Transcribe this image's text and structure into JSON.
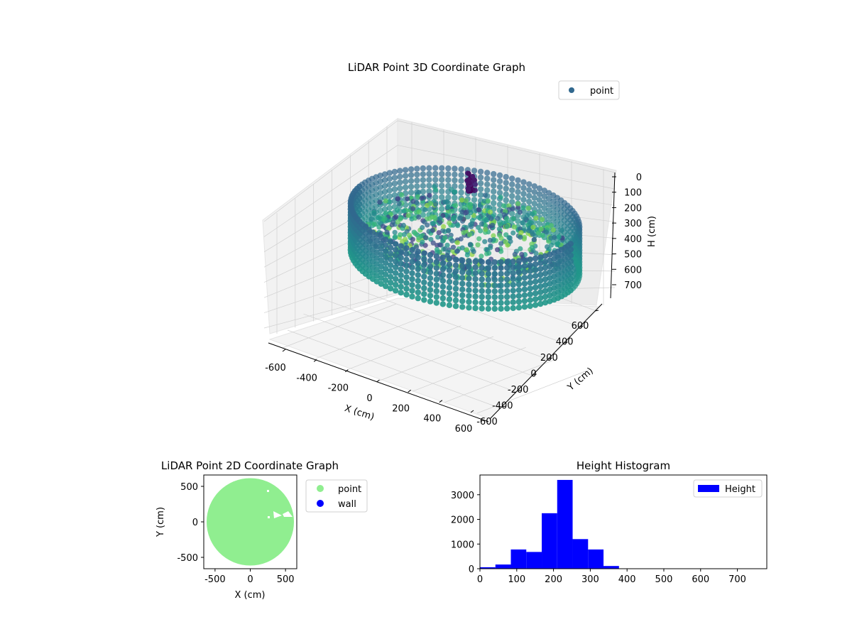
{
  "chart_data": [
    {
      "type": "scatter",
      "title": "LiDAR Point 3D Coordinate Graph",
      "xlabel": "X (cm)",
      "ylabel": "Y (cm)",
      "zlabel": "H (cm)",
      "x_ticks": [
        "-600",
        "-400",
        "-200",
        "0",
        "200",
        "400",
        "600"
      ],
      "y_ticks": [
        "-600",
        "-400",
        "-200",
        "0",
        "200",
        "400",
        "600"
      ],
      "z_ticks": [
        "0",
        "100",
        "200",
        "300",
        "400",
        "500",
        "600",
        "700"
      ],
      "xlim": [
        -650,
        650
      ],
      "ylim": [
        -650,
        650
      ],
      "zlim": [
        0,
        760
      ],
      "z_inverted": true,
      "grid": true,
      "legend": {
        "entries": [
          "point"
        ],
        "placement": "top-right"
      },
      "colors": {
        "legend_marker": "#31688e",
        "panes": "#f2f2f2",
        "grid": "#d0d0d0"
      },
      "ring": {
        "radius": 620,
        "top_h": 50,
        "bottom_h": 460
      },
      "hotspot": {
        "x": -50,
        "y": 200,
        "h_low": 60,
        "h_high": 220
      }
    },
    {
      "type": "scatter",
      "title": "LiDAR Point 2D Coordinate Graph",
      "xlabel": "X (cm)",
      "ylabel": "Y (cm)",
      "x_ticks": [
        "-500",
        "0",
        "500"
      ],
      "y_ticks": [
        "500",
        "0",
        "-500"
      ],
      "xlim": [
        -660,
        660
      ],
      "ylim": [
        -660,
        660
      ],
      "circle_radius": 620,
      "legend": {
        "entries": [
          {
            "label": "point",
            "color": "#90ee90"
          },
          {
            "label": "wall",
            "color": "#0000ff"
          }
        ],
        "placement": "outside-right"
      }
    },
    {
      "type": "bar",
      "title": "Height Histogram",
      "xlim": [
        0,
        780
      ],
      "ylim": [
        0,
        3800
      ],
      "x_ticks": [
        0,
        100,
        200,
        300,
        400,
        500,
        600,
        700
      ],
      "y_ticks": [
        0,
        1000,
        2000,
        3000
      ],
      "bin_width": 42,
      "bins": [
        {
          "x0": 0,
          "value": 60
        },
        {
          "x0": 42,
          "value": 170
        },
        {
          "x0": 84,
          "value": 780
        },
        {
          "x0": 126,
          "value": 680
        },
        {
          "x0": 168,
          "value": 2250
        },
        {
          "x0": 210,
          "value": 3600
        },
        {
          "x0": 252,
          "value": 1200
        },
        {
          "x0": 294,
          "value": 780
        },
        {
          "x0": 336,
          "value": 110
        },
        {
          "x0": 378,
          "value": 0
        }
      ],
      "color": "#0000ff",
      "legend": {
        "entries": [
          "Height"
        ],
        "placement": "top-right"
      }
    }
  ]
}
